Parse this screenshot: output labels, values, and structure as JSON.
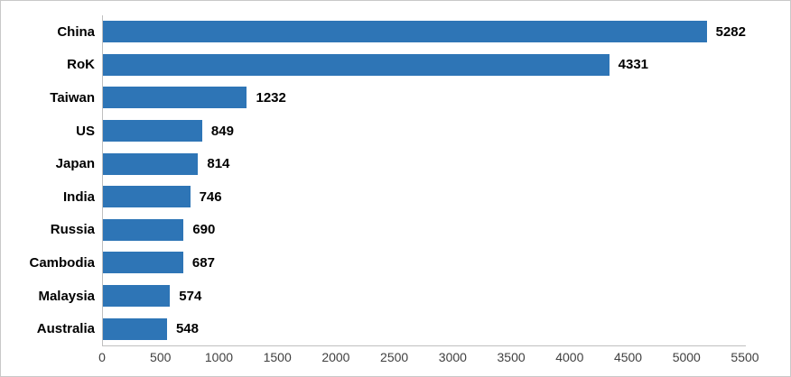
{
  "chart_data": {
    "type": "bar",
    "orientation": "horizontal",
    "title": "",
    "xlabel": "",
    "ylabel": "",
    "categories": [
      "China",
      "RoK",
      "Taiwan",
      "US",
      "Japan",
      "India",
      "Russia",
      "Cambodia",
      "Malaysia",
      "Australia"
    ],
    "values": [
      5282,
      4331,
      1232,
      849,
      814,
      746,
      690,
      687,
      574,
      548
    ],
    "data_labels": [
      "5282",
      "4331",
      "1232",
      "849",
      "814",
      "746",
      "690",
      "687",
      "574",
      "548"
    ],
    "xlim": [
      0,
      5500
    ],
    "xticks": [
      0,
      500,
      1000,
      1500,
      2000,
      2500,
      3000,
      3500,
      4000,
      4500,
      5000,
      5500
    ],
    "grid": false,
    "legend": false,
    "colors": {
      "bar": "#2e75b6",
      "axis_line": "#bfbfbf",
      "tick_label": "#404040",
      "category_label": "#000000",
      "data_label": "#000000",
      "background": "#ffffff",
      "frame_border": "#c9c9c9"
    }
  }
}
